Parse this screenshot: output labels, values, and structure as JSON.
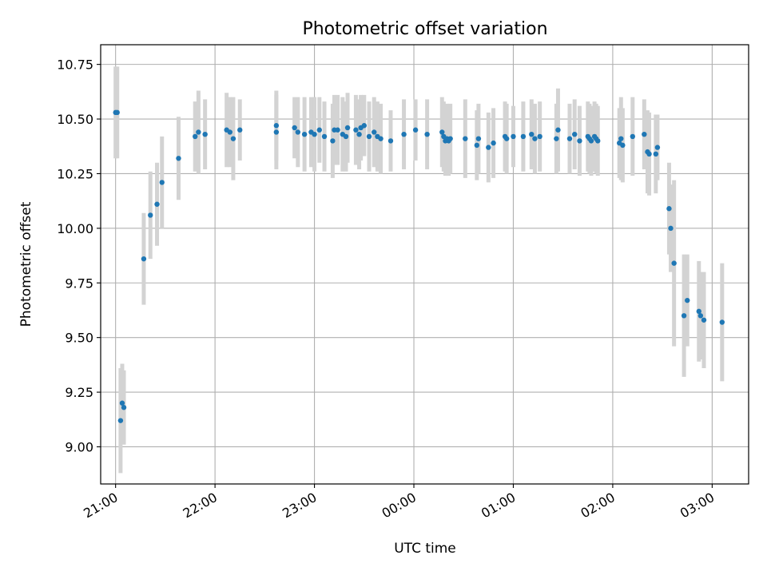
{
  "chart_data": {
    "type": "scatter",
    "title": "Photometric offset variation",
    "xlabel": "UTC time",
    "ylabel": "Photometric offset",
    "grid": true,
    "x_ticks": [
      "21:00",
      "22:00",
      "23:00",
      "00:00",
      "01:00",
      "02:00",
      "03:00"
    ],
    "y_ticks": [
      "9.00",
      "9.25",
      "9.50",
      "9.75",
      "10.00",
      "10.25",
      "10.50",
      "10.75"
    ],
    "xlim": [
      "20:51",
      "03:22"
    ],
    "ylim": [
      8.83,
      10.84
    ],
    "colors": {
      "point": "#1f77b4",
      "errorbar": "#d3d3d3",
      "grid": "#b0b0b0"
    },
    "series": [
      {
        "points": [
          [
            "21:00",
            10.53,
            0.21
          ],
          [
            "21:01",
            10.53,
            0.21
          ],
          [
            "21:03",
            9.12,
            0.24
          ],
          [
            "21:04",
            9.2,
            0.18
          ],
          [
            "21:05",
            9.18,
            0.17
          ],
          [
            "21:17",
            9.86,
            0.21
          ],
          [
            "21:21",
            10.06,
            0.2
          ],
          [
            "21:25",
            10.11,
            0.19
          ],
          [
            "21:28",
            10.21,
            0.21
          ],
          [
            "21:38",
            10.32,
            0.19
          ],
          [
            "21:48",
            10.42,
            0.16
          ],
          [
            "21:50",
            10.44,
            0.19
          ],
          [
            "21:54",
            10.43,
            0.16
          ],
          [
            "22:07",
            10.45,
            0.17
          ],
          [
            "22:09",
            10.44,
            0.16
          ],
          [
            "22:11",
            10.41,
            0.19
          ],
          [
            "22:15",
            10.45,
            0.14
          ],
          [
            "22:37",
            10.44,
            0.17
          ],
          [
            "22:37",
            10.47,
            0.16
          ],
          [
            "22:48",
            10.46,
            0.14
          ],
          [
            "22:50",
            10.44,
            0.16
          ],
          [
            "22:54",
            10.43,
            0.17
          ],
          [
            "22:58",
            10.44,
            0.16
          ],
          [
            "23:00",
            10.43,
            0.17
          ],
          [
            "23:03",
            10.45,
            0.15
          ],
          [
            "23:06",
            10.42,
            0.16
          ],
          [
            "23:11",
            10.4,
            0.17
          ],
          [
            "23:12",
            10.45,
            0.16
          ],
          [
            "23:14",
            10.45,
            0.16
          ],
          [
            "23:17",
            10.43,
            0.17
          ],
          [
            "23:19",
            10.42,
            0.16
          ],
          [
            "23:20",
            10.46,
            0.16
          ],
          [
            "23:25",
            10.45,
            0.16
          ],
          [
            "23:27",
            10.43,
            0.16
          ],
          [
            "23:28",
            10.46,
            0.15
          ],
          [
            "23:30",
            10.47,
            0.14
          ],
          [
            "23:33",
            10.42,
            0.16
          ],
          [
            "23:36",
            10.44,
            0.16
          ],
          [
            "23:38",
            10.42,
            0.16
          ],
          [
            "23:40",
            10.41,
            0.16
          ],
          [
            "23:46",
            10.4,
            0.14
          ],
          [
            "23:54",
            10.43,
            0.16
          ],
          [
            "00:01",
            10.45,
            0.14
          ],
          [
            "00:08",
            10.43,
            0.16
          ],
          [
            "00:17",
            10.44,
            0.16
          ],
          [
            "00:18",
            10.42,
            0.16
          ],
          [
            "00:19",
            10.4,
            0.16
          ],
          [
            "00:20",
            10.41,
            0.16
          ],
          [
            "00:21",
            10.4,
            0.16
          ],
          [
            "00:22",
            10.41,
            0.16
          ],
          [
            "00:31",
            10.41,
            0.18
          ],
          [
            "00:38",
            10.38,
            0.16
          ],
          [
            "00:39",
            10.41,
            0.16
          ],
          [
            "00:45",
            10.37,
            0.16
          ],
          [
            "00:48",
            10.39,
            0.16
          ],
          [
            "00:55",
            10.42,
            0.16
          ],
          [
            "00:56",
            10.41,
            0.16
          ],
          [
            "01:00",
            10.42,
            0.14
          ],
          [
            "01:06",
            10.42,
            0.16
          ],
          [
            "01:11",
            10.43,
            0.16
          ],
          [
            "01:13",
            10.41,
            0.16
          ],
          [
            "01:16",
            10.42,
            0.16
          ],
          [
            "01:26",
            10.41,
            0.16
          ],
          [
            "01:27",
            10.45,
            0.19
          ],
          [
            "01:34",
            10.41,
            0.16
          ],
          [
            "01:37",
            10.43,
            0.16
          ],
          [
            "01:40",
            10.4,
            0.16
          ],
          [
            "01:45",
            10.42,
            0.16
          ],
          [
            "01:46",
            10.41,
            0.16
          ],
          [
            "01:47",
            10.4,
            0.16
          ],
          [
            "01:49",
            10.42,
            0.16
          ],
          [
            "01:50",
            10.41,
            0.16
          ],
          [
            "01:51",
            10.4,
            0.16
          ],
          [
            "02:04",
            10.39,
            0.16
          ],
          [
            "02:05",
            10.41,
            0.19
          ],
          [
            "02:06",
            10.38,
            0.17
          ],
          [
            "02:12",
            10.42,
            0.18
          ],
          [
            "02:19",
            10.43,
            0.16
          ],
          [
            "02:21",
            10.35,
            0.19
          ],
          [
            "02:22",
            10.34,
            0.19
          ],
          [
            "02:26",
            10.34,
            0.18
          ],
          [
            "02:27",
            10.37,
            0.15
          ],
          [
            "02:34",
            10.09,
            0.21
          ],
          [
            "02:35",
            10.0,
            0.2
          ],
          [
            "02:37",
            9.84,
            0.38
          ],
          [
            "02:43",
            9.6,
            0.28
          ],
          [
            "02:45",
            9.67,
            0.21
          ],
          [
            "02:52",
            9.62,
            0.23
          ],
          [
            "02:53",
            9.6,
            0.2
          ],
          [
            "02:55",
            9.58,
            0.22
          ],
          [
            "03:06",
            9.57,
            0.27
          ]
        ]
      }
    ]
  }
}
